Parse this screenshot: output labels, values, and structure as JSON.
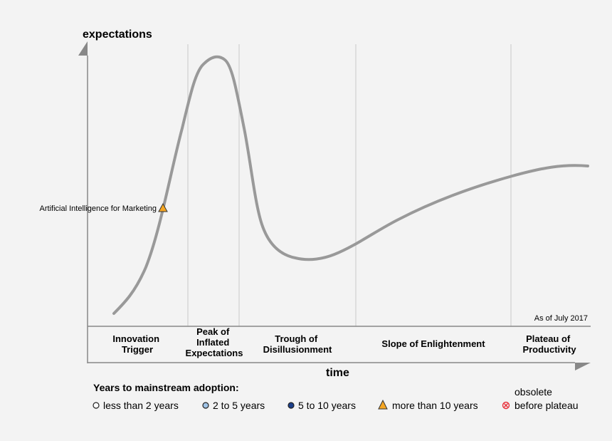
{
  "axes": {
    "y_title": "expectations",
    "x_title": "time"
  },
  "as_of": "As of July 2017",
  "phases": [
    {
      "lines": [
        "Innovation",
        "Trigger"
      ]
    },
    {
      "lines": [
        "Peak of",
        "Inflated",
        "Expectations"
      ]
    },
    {
      "lines": [
        "Trough of",
        "Disillusionment"
      ]
    },
    {
      "lines": [
        "Slope of Enlightenment"
      ]
    },
    {
      "lines": [
        "Plateau of",
        "Productivity"
      ]
    }
  ],
  "technologies": [
    {
      "label": "Artificial Intelligence for Marketing",
      "years_to_adoption": "more than 10 years",
      "phase": "Innovation Trigger"
    }
  ],
  "legend": {
    "title": "Years to mainstream adoption:",
    "items": [
      {
        "label": "less than 2 years",
        "icon": "white-circle-icon",
        "color": "#ffffff"
      },
      {
        "label": "2 to 5 years",
        "icon": "light-blue-circle-icon",
        "color": "#9fc3e6"
      },
      {
        "label": "5 to 10 years",
        "icon": "dark-blue-circle-icon",
        "color": "#1b3f8b"
      },
      {
        "label": "more than 10 years",
        "icon": "orange-triangle-icon",
        "color": "#f5a623"
      },
      {
        "label_lines": [
          "obsolete",
          "before plateau"
        ],
        "icon": "red-x-circle-icon",
        "color": "#e8303a"
      }
    ]
  },
  "colors": {
    "curve": "#999999",
    "axis": "#888888",
    "divider": "#d8d8d8"
  }
}
